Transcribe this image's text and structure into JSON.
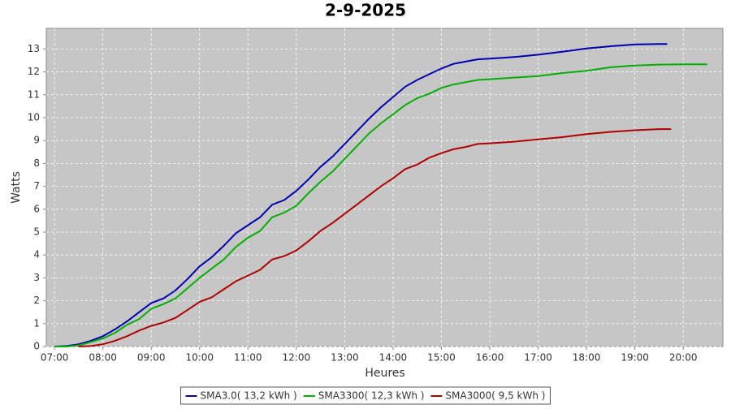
{
  "chart_data": {
    "type": "line",
    "title": "2-9-2025",
    "x_label": "Heures",
    "y_label": "Watts",
    "xlim": [
      6.83,
      20.82
    ],
    "ylim": [
      0,
      13.9
    ],
    "grid": true,
    "legend": "bottom",
    "xticks": [
      {
        "value": 7,
        "label": "07:00"
      },
      {
        "value": 8,
        "label": "08:00"
      },
      {
        "value": 9,
        "label": "09:00"
      },
      {
        "value": 10,
        "label": "10:00"
      },
      {
        "value": 11,
        "label": "11:00"
      },
      {
        "value": 12,
        "label": "12:00"
      },
      {
        "value": 13,
        "label": "13:00"
      },
      {
        "value": 14,
        "label": "14:00"
      },
      {
        "value": 15,
        "label": "15:00"
      },
      {
        "value": 16,
        "label": "16:00"
      },
      {
        "value": 17,
        "label": "17:00"
      },
      {
        "value": 18,
        "label": "18:00"
      },
      {
        "value": 19,
        "label": "19:00"
      },
      {
        "value": 20,
        "label": "20:00"
      }
    ],
    "yticks": [
      0,
      1,
      2,
      3,
      4,
      5,
      6,
      7,
      8,
      9,
      10,
      11,
      12,
      13
    ],
    "series": [
      {
        "name": "SMA3.0( 13,2 kWh )",
        "color": "#0000b0",
        "x": [
          7,
          7.25,
          7.5,
          7.75,
          8,
          8.25,
          8.5,
          8.75,
          9,
          9.25,
          9.5,
          9.75,
          10,
          10.25,
          10.5,
          10.75,
          11,
          11.25,
          11.5,
          11.75,
          12,
          12.25,
          12.5,
          12.75,
          13,
          13.25,
          13.5,
          13.75,
          14,
          14.25,
          14.5,
          14.75,
          15,
          15.25,
          15.5,
          15.75,
          16,
          16.5,
          17,
          17.5,
          18,
          18.5,
          19,
          19.5,
          19.67
        ],
        "values": [
          0,
          0.02,
          0.1,
          0.25,
          0.45,
          0.75,
          1.1,
          1.5,
          1.9,
          2.1,
          2.45,
          2.95,
          3.5,
          3.9,
          4.4,
          4.95,
          5.3,
          5.65,
          6.2,
          6.4,
          6.8,
          7.3,
          7.85,
          8.3,
          8.85,
          9.4,
          9.95,
          10.45,
          10.9,
          11.35,
          11.65,
          11.9,
          12.15,
          12.35,
          12.45,
          12.55,
          12.58,
          12.65,
          12.75,
          12.88,
          13.02,
          13.12,
          13.2,
          13.22,
          13.22
        ]
      },
      {
        "name": "SMA3300( 12,3 kWh )",
        "color": "#00b000",
        "x": [
          7,
          7.25,
          7.5,
          7.75,
          8,
          8.25,
          8.5,
          8.75,
          9,
          9.25,
          9.5,
          9.75,
          10,
          10.25,
          10.5,
          10.75,
          11,
          11.25,
          11.5,
          11.75,
          12,
          12.25,
          12.5,
          12.75,
          13,
          13.25,
          13.5,
          13.75,
          14,
          14.25,
          14.5,
          14.75,
          15,
          15.25,
          15.5,
          15.75,
          16,
          16.5,
          17,
          17.5,
          18,
          18.5,
          19,
          19.5,
          20,
          20.5
        ],
        "values": [
          0,
          0,
          0.05,
          0.2,
          0.35,
          0.6,
          0.95,
          1.2,
          1.65,
          1.85,
          2.1,
          2.55,
          3.0,
          3.4,
          3.8,
          4.35,
          4.75,
          5.05,
          5.65,
          5.85,
          6.15,
          6.7,
          7.2,
          7.65,
          8.2,
          8.75,
          9.3,
          9.75,
          10.15,
          10.55,
          10.85,
          11.05,
          11.3,
          11.45,
          11.55,
          11.65,
          11.68,
          11.75,
          11.82,
          11.95,
          12.05,
          12.2,
          12.28,
          12.32,
          12.33,
          12.33
        ]
      },
      {
        "name": "SMA3000( 9,5 kWh )",
        "color": "#b00000",
        "x": [
          7.5,
          7.75,
          8,
          8.25,
          8.5,
          8.75,
          9,
          9.25,
          9.5,
          9.75,
          10,
          10.25,
          10.5,
          10.75,
          11,
          11.25,
          11.5,
          11.75,
          12,
          12.25,
          12.5,
          12.75,
          13,
          13.25,
          13.5,
          13.75,
          14,
          14.25,
          14.5,
          14.75,
          15,
          15.25,
          15.5,
          15.75,
          16,
          16.5,
          17,
          17.5,
          18,
          18.5,
          19,
          19.5,
          19.75
        ],
        "values": [
          0,
          0.02,
          0.1,
          0.25,
          0.45,
          0.7,
          0.9,
          1.05,
          1.25,
          1.6,
          1.95,
          2.15,
          2.5,
          2.85,
          3.1,
          3.35,
          3.8,
          3.95,
          4.2,
          4.6,
          5.05,
          5.4,
          5.8,
          6.2,
          6.6,
          7.0,
          7.35,
          7.75,
          7.95,
          8.25,
          8.45,
          8.62,
          8.72,
          8.85,
          8.88,
          8.95,
          9.05,
          9.15,
          9.28,
          9.38,
          9.45,
          9.5,
          9.5
        ]
      }
    ]
  }
}
